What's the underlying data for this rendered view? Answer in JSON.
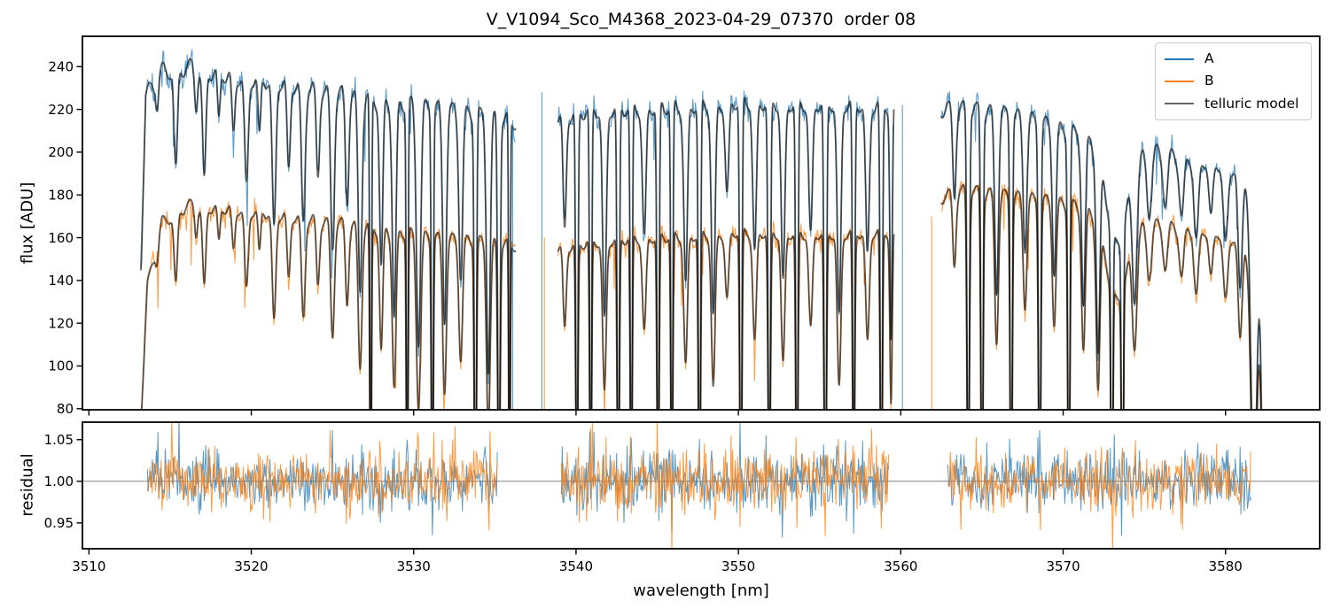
{
  "figure": {
    "title": "V_V1094_Sco_M4368_2023-04-29_07370  order 08",
    "background": "#ffffff"
  },
  "legend": {
    "position": "upper right",
    "items": [
      {
        "label": "A",
        "color": "#1f77b4"
      },
      {
        "label": "B",
        "color": "#ff7f0e"
      },
      {
        "label": "telluric model",
        "color": "#666666"
      }
    ]
  },
  "chart_data": [
    {
      "type": "line",
      "panel": "flux",
      "title": "V_V1094_Sco_M4368_2023-04-29_07370  order 08",
      "ylabel": "flux [ADU]",
      "axes_rect": [
        93,
        41,
        1489,
        463
      ],
      "xlim": [
        3509.6,
        3585.8
      ],
      "ylim": [
        79.5,
        254.2
      ],
      "x_ticks": [
        3510,
        3520,
        3530,
        3540,
        3550,
        3560,
        3570,
        3580
      ],
      "x_tick_labels": [],
      "y_ticks": [
        80,
        100,
        120,
        140,
        160,
        180,
        200,
        220,
        240
      ],
      "y_tick_labels": [
        "80",
        "100",
        "120",
        "140",
        "160",
        "180",
        "200",
        "220",
        "240"
      ],
      "grid": false,
      "legend_position": "upper right",
      "segments": [
        [
          3513.2,
          3536.3
        ],
        [
          3538.9,
          3559.6
        ],
        [
          3562.5,
          3582.5
        ]
      ],
      "series": [
        {
          "name": "A",
          "role": "data",
          "color": "#1f77b4",
          "opacity": 0.72,
          "line_width": 1.1,
          "noise_rel": 0.012,
          "noise_adu": 1.0,
          "seed": 101,
          "continuum": [
            [
              3513.2,
              150
            ],
            [
              3513.5,
              230
            ],
            [
              3514.5,
              242
            ],
            [
              3516,
              244
            ],
            [
              3519,
              240
            ],
            [
              3522,
              237
            ],
            [
              3525,
              232
            ],
            [
              3528,
              228
            ],
            [
              3531,
              225
            ],
            [
              3534,
              221
            ],
            [
              3536.3,
              218
            ],
            [
              3538.9,
              220
            ],
            [
              3541,
              224
            ],
            [
              3544,
              225
            ],
            [
              3547,
              226
            ],
            [
              3550,
              228
            ],
            [
              3553,
              227
            ],
            [
              3556,
              227
            ],
            [
              3559.6,
              226
            ],
            [
              3562.5,
              224
            ],
            [
              3564,
              224
            ],
            [
              3566,
              222
            ],
            [
              3568,
              219
            ],
            [
              3570,
              214
            ],
            [
              3572,
              209
            ],
            [
              3574,
              202
            ],
            [
              3576,
              204
            ],
            [
              3578,
              201
            ],
            [
              3580,
              198
            ],
            [
              3581.2,
              194
            ],
            [
              3582.0,
              170
            ],
            [
              3582.5,
              110
            ]
          ]
        },
        {
          "name": "B",
          "role": "data",
          "color": "#ff7f0e",
          "opacity": 0.76,
          "line_width": 1.1,
          "noise_rel": 0.013,
          "noise_adu": 1.0,
          "seed": 202,
          "continuum": [
            [
              3513.2,
              75
            ],
            [
              3513.6,
              140
            ],
            [
              3514.5,
              170
            ],
            [
              3516,
              178
            ],
            [
              3519,
              177
            ],
            [
              3522,
              174
            ],
            [
              3525,
              170
            ],
            [
              3528,
              167
            ],
            [
              3531,
              163
            ],
            [
              3534,
              161
            ],
            [
              3536.3,
              159
            ],
            [
              3538.9,
              158
            ],
            [
              3541,
              161
            ],
            [
              3544,
              163
            ],
            [
              3547,
              164
            ],
            [
              3550,
              166
            ],
            [
              3553,
              165
            ],
            [
              3556,
              165
            ],
            [
              3559.6,
              166
            ],
            [
              3562.5,
              182
            ],
            [
              3564,
              185
            ],
            [
              3566,
              183
            ],
            [
              3568,
              181
            ],
            [
              3570,
              179
            ],
            [
              3572,
              175
            ],
            [
              3574,
              168
            ],
            [
              3576,
              169
            ],
            [
              3578,
              168
            ],
            [
              3580,
              165
            ],
            [
              3581.2,
              161
            ],
            [
              3582.0,
              140
            ],
            [
              3582.5,
              90
            ]
          ]
        },
        {
          "name": "telluric model",
          "role": "model",
          "color": "#000000",
          "opacity": 0.6,
          "line_width": 1.9,
          "applies_to": [
            "A",
            "B"
          ]
        }
      ],
      "telluric_lines": [
        [
          3514.2,
          0.05,
          0.12
        ],
        [
          3515.35,
          0.2,
          0.15
        ],
        [
          3516.6,
          0.07,
          0.12
        ],
        [
          3517.1,
          0.22,
          0.15
        ],
        [
          3518.0,
          0.1,
          0.12
        ],
        [
          3518.9,
          0.12,
          0.14
        ],
        [
          3519.7,
          0.22,
          0.16
        ],
        [
          3520.5,
          0.12,
          0.12
        ],
        [
          3521.4,
          0.3,
          0.16
        ],
        [
          3522.3,
          0.18,
          0.14
        ],
        [
          3523.2,
          0.28,
          0.16
        ],
        [
          3524.1,
          0.18,
          0.14
        ],
        [
          3525.0,
          0.32,
          0.16
        ],
        [
          3525.9,
          0.22,
          0.14
        ],
        [
          3526.7,
          0.4,
          0.16
        ],
        [
          3527.35,
          0.96,
          0.07
        ],
        [
          3528.0,
          0.35,
          0.14
        ],
        [
          3528.8,
          0.45,
          0.16
        ],
        [
          3529.6,
          0.97,
          0.07
        ],
        [
          3530.3,
          0.5,
          0.18
        ],
        [
          3531.15,
          0.97,
          0.08
        ],
        [
          3531.9,
          0.45,
          0.16
        ],
        [
          3532.9,
          0.35,
          0.16
        ],
        [
          3533.8,
          0.97,
          0.09
        ],
        [
          3534.6,
          0.55,
          0.16
        ],
        [
          3535.25,
          0.85,
          0.1
        ],
        [
          3535.9,
          0.97,
          0.06
        ],
        [
          3539.3,
          0.25,
          0.14
        ],
        [
          3540.05,
          0.88,
          0.09
        ],
        [
          3540.9,
          0.96,
          0.08
        ],
        [
          3541.75,
          0.45,
          0.16
        ],
        [
          3542.6,
          0.96,
          0.09
        ],
        [
          3543.4,
          0.96,
          0.08
        ],
        [
          3544.2,
          0.28,
          0.16
        ],
        [
          3545.05,
          0.88,
          0.09
        ],
        [
          3545.9,
          0.96,
          0.08
        ],
        [
          3546.75,
          0.38,
          0.16
        ],
        [
          3547.6,
          0.96,
          0.09
        ],
        [
          3548.45,
          0.45,
          0.16
        ],
        [
          3549.3,
          0.2,
          0.16
        ],
        [
          3550.15,
          0.96,
          0.09
        ],
        [
          3551.0,
          0.32,
          0.16
        ],
        [
          3551.9,
          0.88,
          0.1
        ],
        [
          3552.75,
          0.38,
          0.16
        ],
        [
          3553.6,
          0.96,
          0.09
        ],
        [
          3554.45,
          0.28,
          0.16
        ],
        [
          3555.35,
          0.96,
          0.1
        ],
        [
          3556.2,
          0.45,
          0.16
        ],
        [
          3557.1,
          0.88,
          0.09
        ],
        [
          3557.95,
          0.32,
          0.16
        ],
        [
          3558.8,
          0.96,
          0.09
        ],
        [
          3559.4,
          0.5,
          0.1
        ],
        [
          3563.3,
          0.18,
          0.14
        ],
        [
          3564.15,
          0.88,
          0.1
        ],
        [
          3565.0,
          0.96,
          0.09
        ],
        [
          3565.9,
          0.38,
          0.16
        ],
        [
          3566.8,
          0.96,
          0.09
        ],
        [
          3567.65,
          0.28,
          0.16
        ],
        [
          3568.55,
          0.88,
          0.1
        ],
        [
          3569.45,
          0.32,
          0.16
        ],
        [
          3570.35,
          0.96,
          0.09
        ],
        [
          3571.25,
          0.38,
          0.16
        ],
        [
          3572.15,
          0.45,
          0.16
        ],
        [
          3573.0,
          0.9,
          0.08
        ],
        [
          3573.3,
          0.22,
          0.85
        ],
        [
          3573.65,
          0.88,
          0.08
        ],
        [
          3574.4,
          0.3,
          0.2
        ],
        [
          3575.3,
          0.14,
          0.2
        ],
        [
          3576.3,
          0.12,
          0.2
        ],
        [
          3577.3,
          0.15,
          0.2
        ],
        [
          3578.2,
          0.2,
          0.2
        ],
        [
          3579.1,
          0.14,
          0.18
        ],
        [
          3580.0,
          0.2,
          0.2
        ],
        [
          3580.9,
          0.3,
          0.18
        ],
        [
          3581.75,
          0.8,
          0.25
        ],
        [
          3582.4,
          0.95,
          0.2
        ]
      ],
      "ripple": {
        "period": 0.85,
        "amp": 0.035
      },
      "spikes": [
        {
          "series": "A",
          "x": 3536.1,
          "y1": 215,
          "y2": 60
        },
        {
          "series": "A",
          "x": 3537.9,
          "y1": 228,
          "y2": 60
        },
        {
          "series": "B",
          "x": 3538.05,
          "y1": 160,
          "y2": 60
        },
        {
          "series": "A",
          "x": 3560.1,
          "y1": 222,
          "y2": 60
        },
        {
          "series": "B",
          "x": 3561.9,
          "y1": 170,
          "y2": 60
        }
      ]
    },
    {
      "type": "line",
      "panel": "residual",
      "xlabel": "wavelength [nm]",
      "ylabel": "residual",
      "axes_rect": [
        93,
        477,
        1489,
        620
      ],
      "xlim": [
        3509.6,
        3585.8
      ],
      "ylim": [
        0.919,
        1.071
      ],
      "x_ticks": [
        3510,
        3520,
        3530,
        3540,
        3550,
        3560,
        3570,
        3580
      ],
      "x_tick_labels": [
        "3510",
        "3520",
        "3530",
        "3540",
        "3550",
        "3560",
        "3570",
        "3580"
      ],
      "y_ticks": [
        0.95,
        1.0,
        1.05
      ],
      "y_tick_labels": [
        "0.95",
        "1.00",
        "1.05"
      ],
      "grid": false,
      "baseline": {
        "y": 1.0,
        "color": "#808080",
        "line_width": 1
      },
      "segments": [
        [
          3513.6,
          3535.2
        ],
        [
          3539.1,
          3559.3
        ],
        [
          3562.9,
          3581.6
        ]
      ],
      "series": [
        {
          "name": "A residual",
          "color": "#1f77b4",
          "opacity": 0.75,
          "line_width": 1.0,
          "sigma": 0.0135,
          "seed": 303
        },
        {
          "name": "B residual",
          "color": "#ff7f0e",
          "opacity": 0.78,
          "line_width": 1.0,
          "sigma": 0.014,
          "seed": 404
        }
      ]
    }
  ]
}
